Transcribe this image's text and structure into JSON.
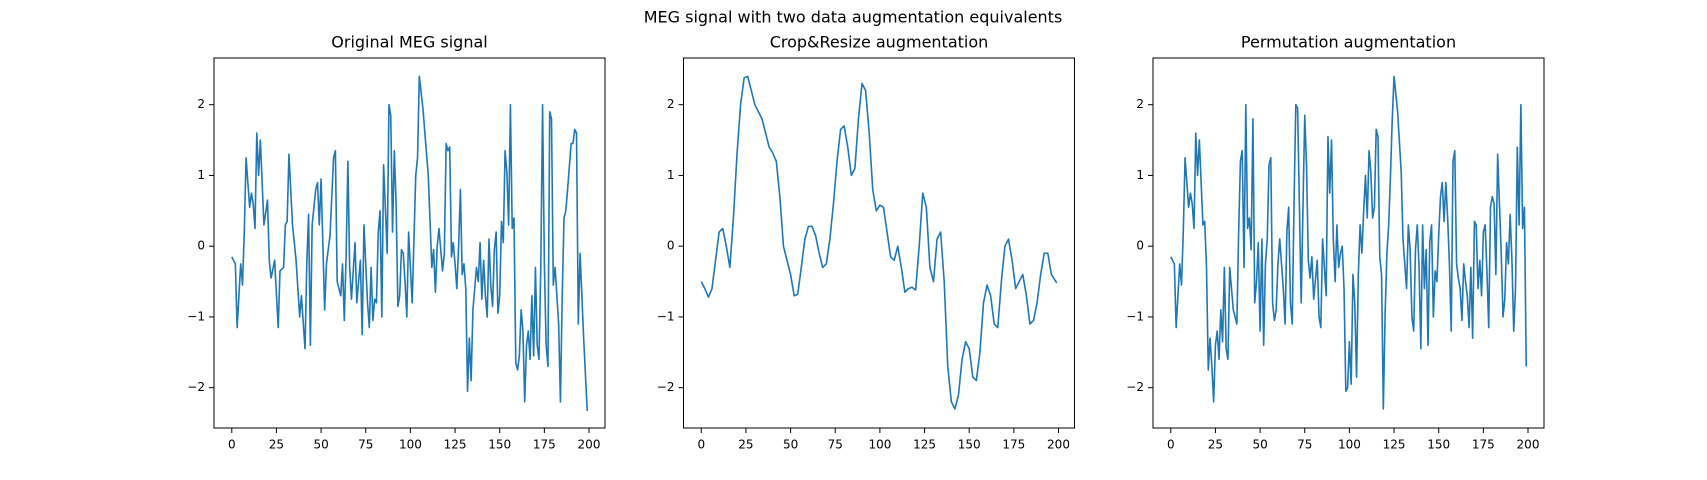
{
  "title": "MEG signal with two data augmentation equivalents",
  "chart_data": [
    {
      "type": "line",
      "title": "Original MEG signal",
      "color": "#1f77b4",
      "x": [
        0,
        2,
        3,
        5,
        6,
        7,
        8,
        10,
        11,
        12,
        13,
        14,
        15,
        16,
        18,
        20,
        21,
        22,
        24,
        26,
        27,
        29,
        30,
        31,
        32,
        34,
        36,
        38,
        39,
        41,
        42,
        43,
        44,
        45,
        47,
        48,
        49,
        50,
        52,
        53,
        55,
        57,
        58,
        59,
        61,
        62,
        63,
        64,
        65,
        66,
        67,
        69,
        70,
        72,
        73,
        74,
        76,
        77,
        78,
        79,
        80,
        81,
        82,
        83,
        84,
        85,
        87,
        88,
        89,
        90,
        91,
        92,
        93,
        94,
        95,
        96,
        97,
        98,
        99,
        101,
        103,
        104,
        105,
        107,
        110,
        112,
        113,
        114,
        115,
        116,
        117,
        118,
        119,
        120,
        121,
        122,
        123,
        124,
        125,
        126,
        127,
        128,
        129,
        130,
        131,
        132,
        133,
        134,
        135,
        136,
        137,
        138,
        139,
        140,
        141,
        142,
        143,
        144,
        145,
        146,
        147,
        148,
        149,
        150,
        151,
        152,
        153,
        154,
        155,
        156,
        157,
        158,
        159,
        160,
        161,
        162,
        163,
        164,
        165,
        166,
        167,
        168,
        169,
        170,
        171,
        172,
        173,
        174,
        175,
        176,
        177,
        178,
        179,
        180,
        181,
        183,
        184,
        185,
        186,
        187,
        188,
        190,
        191,
        192,
        193,
        194,
        195,
        197,
        199
      ],
      "values": [
        -0.15,
        -0.25,
        -1.15,
        -0.25,
        -0.55,
        0.2,
        1.25,
        0.55,
        0.75,
        0.6,
        0.25,
        1.6,
        1.0,
        1.5,
        0.3,
        0.65,
        -0.2,
        -0.45,
        -0.2,
        -1.15,
        -0.35,
        -0.3,
        0.3,
        0.35,
        1.3,
        0.3,
        -0.2,
        -1.0,
        -0.7,
        -1.45,
        -0.25,
        0.45,
        -1.4,
        0.3,
        0.8,
        0.9,
        0.3,
        0.95,
        -0.9,
        -0.25,
        0.15,
        1.25,
        1.35,
        -0.5,
        -0.7,
        -0.25,
        -1.05,
        -0.15,
        1.2,
        -0.3,
        -0.75,
        0.05,
        -0.8,
        -0.2,
        -1.25,
        0.3,
        -0.8,
        -1.15,
        -0.3,
        -1.05,
        -0.75,
        -0.8,
        0.2,
        0.5,
        -1.0,
        1.15,
        -0.1,
        2.0,
        1.85,
        0.2,
        1.35,
        0.6,
        -0.85,
        -0.7,
        -0.05,
        -0.1,
        -0.5,
        -1.0,
        0.2,
        -0.8,
        1.0,
        1.25,
        2.4,
        1.95,
        1.0,
        -0.3,
        -0.05,
        -0.65,
        0.0,
        0.25,
        -0.05,
        -0.35,
        -0.1,
        1.45,
        1.35,
        1.4,
        -0.15,
        0.05,
        -0.25,
        -0.6,
        0.0,
        0.8,
        -0.4,
        -0.25,
        -0.6,
        -2.05,
        -1.3,
        -1.9,
        -0.9,
        -0.6,
        -0.3,
        -0.5,
        0.05,
        -0.75,
        -0.2,
        -0.7,
        -1.0,
        0.1,
        -0.55,
        -0.85,
        -0.05,
        0.2,
        -0.95,
        -0.7,
        0.35,
        0.05,
        1.35,
        1.05,
        0.3,
        2.0,
        0.25,
        0.4,
        -1.65,
        -1.75,
        -1.55,
        -0.9,
        -1.2,
        -2.2,
        -1.4,
        -1.2,
        -1.6,
        -0.7,
        -1.55,
        -0.3,
        -1.4,
        -1.6,
        -0.3,
        2.0,
        -0.25,
        -1.4,
        -1.7,
        1.9,
        1.8,
        -0.55,
        -0.3,
        -1.1,
        -2.2,
        -0.7,
        0.4,
        0.5,
        0.8,
        1.45,
        1.45,
        1.65,
        1.6,
        -1.1,
        -0.1,
        -1.3,
        -2.33
      ],
      "xlim": [
        -9.95,
        208.95
      ],
      "xticks": [
        0,
        25,
        50,
        75,
        100,
        125,
        150,
        175,
        200
      ],
      "ylim": [
        -2.57,
        2.66
      ],
      "yticks": [
        {
          "value": -2,
          "label": "−2"
        },
        {
          "value": -1,
          "label": "−1"
        },
        0,
        1,
        2
      ]
    },
    {
      "type": "line",
      "title": "Crop&Resize augmentation",
      "color": "#1f77b4",
      "x": [
        0,
        2,
        4,
        6,
        8,
        10,
        12,
        14,
        16,
        18,
        20,
        22,
        24,
        26,
        28,
        30,
        32,
        34,
        36,
        38,
        40,
        42,
        44,
        46,
        48,
        50,
        52,
        54,
        56,
        58,
        60,
        62,
        64,
        66,
        68,
        70,
        72,
        74,
        76,
        78,
        80,
        82,
        84,
        86,
        88,
        90,
        92,
        94,
        96,
        98,
        100,
        102,
        104,
        106,
        108,
        110,
        112,
        114,
        116,
        118,
        120,
        122,
        124,
        126,
        128,
        130,
        132,
        134,
        136,
        138,
        140,
        142,
        144,
        146,
        148,
        150,
        152,
        154,
        156,
        158,
        160,
        162,
        164,
        166,
        168,
        170,
        172,
        174,
        176,
        178,
        180,
        182,
        184,
        186,
        188,
        190,
        192,
        194,
        196,
        199
      ],
      "values": [
        -0.5,
        -0.6,
        -0.72,
        -0.6,
        -0.2,
        0.2,
        0.25,
        0.0,
        -0.3,
        0.4,
        1.3,
        2.0,
        2.38,
        2.4,
        2.2,
        2.0,
        1.9,
        1.8,
        1.6,
        1.4,
        1.32,
        1.2,
        0.7,
        0.0,
        -0.2,
        -0.4,
        -0.7,
        -0.68,
        -0.3,
        0.1,
        0.28,
        0.28,
        0.15,
        -0.1,
        -0.3,
        -0.25,
        0.1,
        0.6,
        1.2,
        1.65,
        1.7,
        1.4,
        1.0,
        1.1,
        1.8,
        2.3,
        2.2,
        1.6,
        0.8,
        0.5,
        0.58,
        0.55,
        0.2,
        -0.15,
        -0.2,
        0.0,
        -0.3,
        -0.65,
        -0.6,
        -0.58,
        -0.62,
        0.0,
        0.75,
        0.55,
        -0.3,
        -0.5,
        0.1,
        0.2,
        -0.5,
        -1.7,
        -2.2,
        -2.3,
        -2.1,
        -1.6,
        -1.35,
        -1.45,
        -1.85,
        -1.9,
        -1.5,
        -0.8,
        -0.55,
        -0.7,
        -1.1,
        -1.15,
        -0.5,
        0.0,
        0.1,
        -0.2,
        -0.6,
        -0.5,
        -0.4,
        -0.7,
        -1.1,
        -1.05,
        -0.8,
        -0.4,
        -0.1,
        -0.1,
        -0.4,
        -0.52
      ],
      "xlim": [
        -9.95,
        208.95
      ],
      "xticks": [
        0,
        25,
        50,
        75,
        100,
        125,
        150,
        175,
        200
      ],
      "ylim": [
        -2.57,
        2.66
      ],
      "yticks": [
        {
          "value": -2,
          "label": "−2"
        },
        {
          "value": -1,
          "label": "−1"
        },
        0,
        1,
        2
      ]
    },
    {
      "type": "line",
      "title": "Permutation augmentation",
      "color": "#1f77b4",
      "x": [
        0,
        2,
        3,
        5,
        6,
        7,
        8,
        10,
        11,
        12,
        13,
        14,
        15,
        16,
        18,
        19,
        20,
        21,
        22,
        23,
        24,
        25,
        26,
        27,
        28,
        29,
        30,
        31,
        32,
        33,
        35,
        37,
        38,
        39,
        40,
        41,
        42,
        43,
        44,
        45,
        46,
        47,
        48,
        49,
        50,
        51,
        52,
        53,
        54,
        55,
        56,
        57,
        58,
        59,
        60,
        61,
        63,
        64,
        65,
        66,
        67,
        68,
        69,
        70,
        71,
        72,
        73,
        75,
        76,
        77,
        78,
        79,
        80,
        82,
        83,
        84,
        85,
        86,
        87,
        88,
        89,
        90,
        91,
        92,
        93,
        94,
        95,
        96,
        97,
        98,
        99,
        100,
        101,
        102,
        103,
        104,
        105,
        106,
        107,
        108,
        109,
        110,
        111,
        112,
        113,
        114,
        115,
        116,
        117,
        118,
        119,
        120,
        121,
        122,
        123,
        124,
        125,
        127,
        129,
        130,
        131,
        132,
        133,
        134,
        135,
        136,
        137,
        138,
        139,
        140,
        141,
        142,
        143,
        144,
        145,
        146,
        147,
        148,
        149,
        150,
        151,
        152,
        153,
        154,
        155,
        156,
        157,
        158,
        159,
        160,
        161,
        162,
        163,
        164,
        165,
        166,
        167,
        168,
        169,
        170,
        171,
        172,
        173,
        174,
        175,
        176,
        177,
        178,
        179,
        180,
        181,
        182,
        183,
        184,
        185,
        186,
        187,
        188,
        189,
        190,
        191,
        192,
        193,
        194,
        195,
        196,
        197,
        198,
        199
      ],
      "values": [
        -0.15,
        -0.25,
        -1.15,
        -0.25,
        -0.55,
        0.2,
        1.25,
        0.55,
        0.75,
        0.6,
        0.25,
        1.6,
        1.0,
        1.5,
        0.3,
        0.35,
        -0.3,
        -1.75,
        -1.3,
        -1.7,
        -2.2,
        -1.4,
        -1.2,
        -1.6,
        -0.9,
        -1.35,
        -0.3,
        -1.45,
        -1.6,
        -0.3,
        -0.9,
        -1.1,
        0.2,
        1.2,
        1.35,
        -0.3,
        2.0,
        0.25,
        0.4,
        -0.05,
        1.8,
        -0.8,
        -0.5,
        0.05,
        -1.2,
        0.1,
        -1.4,
        -0.25,
        0.1,
        1.15,
        1.25,
        -0.8,
        -1.05,
        -0.9,
        -0.25,
        0.1,
        -0.6,
        -1.1,
        0.2,
        0.55,
        -0.8,
        -1.1,
        0.6,
        2.0,
        1.95,
        0.6,
        -0.8,
        1.85,
        1.15,
        -0.2,
        -0.45,
        -0.15,
        -0.75,
        -0.2,
        -1.0,
        -1.15,
        0.1,
        -0.3,
        -0.7,
        1.55,
        0.75,
        1.5,
        0.1,
        -0.5,
        0.3,
        -0.3,
        -0.1,
        0.0,
        -0.6,
        -2.05,
        -2.0,
        -1.35,
        -1.95,
        -0.4,
        -0.8,
        -1.85,
        -0.4,
        0.3,
        -0.1,
        0.5,
        1.0,
        0.4,
        1.35,
        1.05,
        0.4,
        0.55,
        1.65,
        1.55,
        -0.15,
        -0.4,
        -2.3,
        -0.95,
        -0.1,
        0.3,
        1.0,
        1.8,
        2.4,
        1.9,
        1.05,
        0.1,
        -0.25,
        -0.6,
        0.3,
        -0.05,
        -1.0,
        -1.2,
        -0.05,
        0.3,
        -0.3,
        -1.45,
        0.3,
        -0.6,
        -0.05,
        -1.4,
        0.05,
        0.3,
        -1.0,
        -0.35,
        -0.5,
        0.15,
        0.7,
        0.9,
        0.35,
        0.9,
        0.4,
        -0.25,
        -1.2,
        1.2,
        1.35,
        -0.25,
        -0.45,
        -0.6,
        -1.05,
        -0.25,
        -0.5,
        -0.7,
        -1.15,
        -0.3,
        -1.3,
        0.35,
        0.3,
        -0.6,
        -0.2,
        -0.7,
        0.2,
        0.3,
        -0.35,
        -1.15,
        0.55,
        0.7,
        0.6,
        -0.4,
        1.3,
        0.6,
        -0.1,
        -1.0,
        -0.75,
        0.05,
        -0.25,
        0.45,
        -0.2,
        -1.2,
        -0.6,
        1.4,
        0.3,
        2.0,
        0.25,
        0.55,
        -1.7
      ],
      "xlim": [
        -9.95,
        208.95
      ],
      "xticks": [
        0,
        25,
        50,
        75,
        100,
        125,
        150,
        175,
        200
      ],
      "ylim": [
        -2.57,
        2.66
      ],
      "yticks": [
        {
          "value": -2,
          "label": "−2"
        },
        {
          "value": -1,
          "label": "−1"
        },
        0,
        1,
        2
      ]
    }
  ]
}
